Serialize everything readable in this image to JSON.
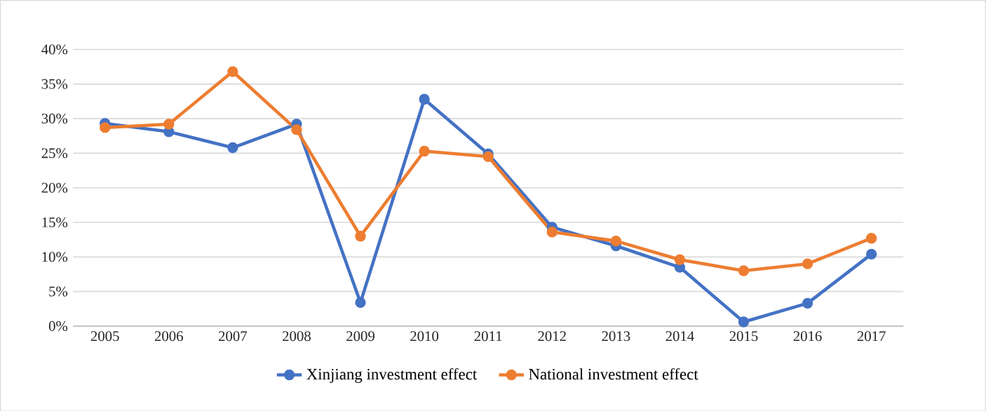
{
  "chart_data": {
    "type": "line",
    "categories": [
      "2005",
      "2006",
      "2007",
      "2008",
      "2009",
      "2010",
      "2011",
      "2012",
      "2013",
      "2014",
      "2015",
      "2016",
      "2017"
    ],
    "series": [
      {
        "name": "Xinjiang investment effect",
        "color": "#4472c4",
        "values": [
          29.3,
          28.1,
          25.8,
          29.2,
          3.4,
          32.8,
          24.9,
          14.3,
          11.6,
          8.5,
          0.6,
          3.3,
          10.4
        ]
      },
      {
        "name": "National investment effect",
        "color": "#ed7d31",
        "values": [
          28.7,
          29.2,
          36.8,
          28.4,
          13.0,
          25.3,
          24.5,
          13.6,
          12.3,
          9.6,
          8.0,
          9.0,
          12.7
        ]
      }
    ],
    "ylim": [
      0,
      40
    ],
    "yticks": [
      {
        "value": 0,
        "label": "0%"
      },
      {
        "value": 5,
        "label": "5%"
      },
      {
        "value": 10,
        "label": "10%"
      },
      {
        "value": 15,
        "label": "15%"
      },
      {
        "value": 20,
        "label": "20%"
      },
      {
        "value": 25,
        "label": "25%"
      },
      {
        "value": 30,
        "label": "30%"
      },
      {
        "value": 35,
        "label": "35%"
      },
      {
        "value": 40,
        "label": "40%"
      }
    ],
    "grid": "y",
    "legend": "bottom",
    "marker": "circle",
    "line_style": "solid"
  }
}
